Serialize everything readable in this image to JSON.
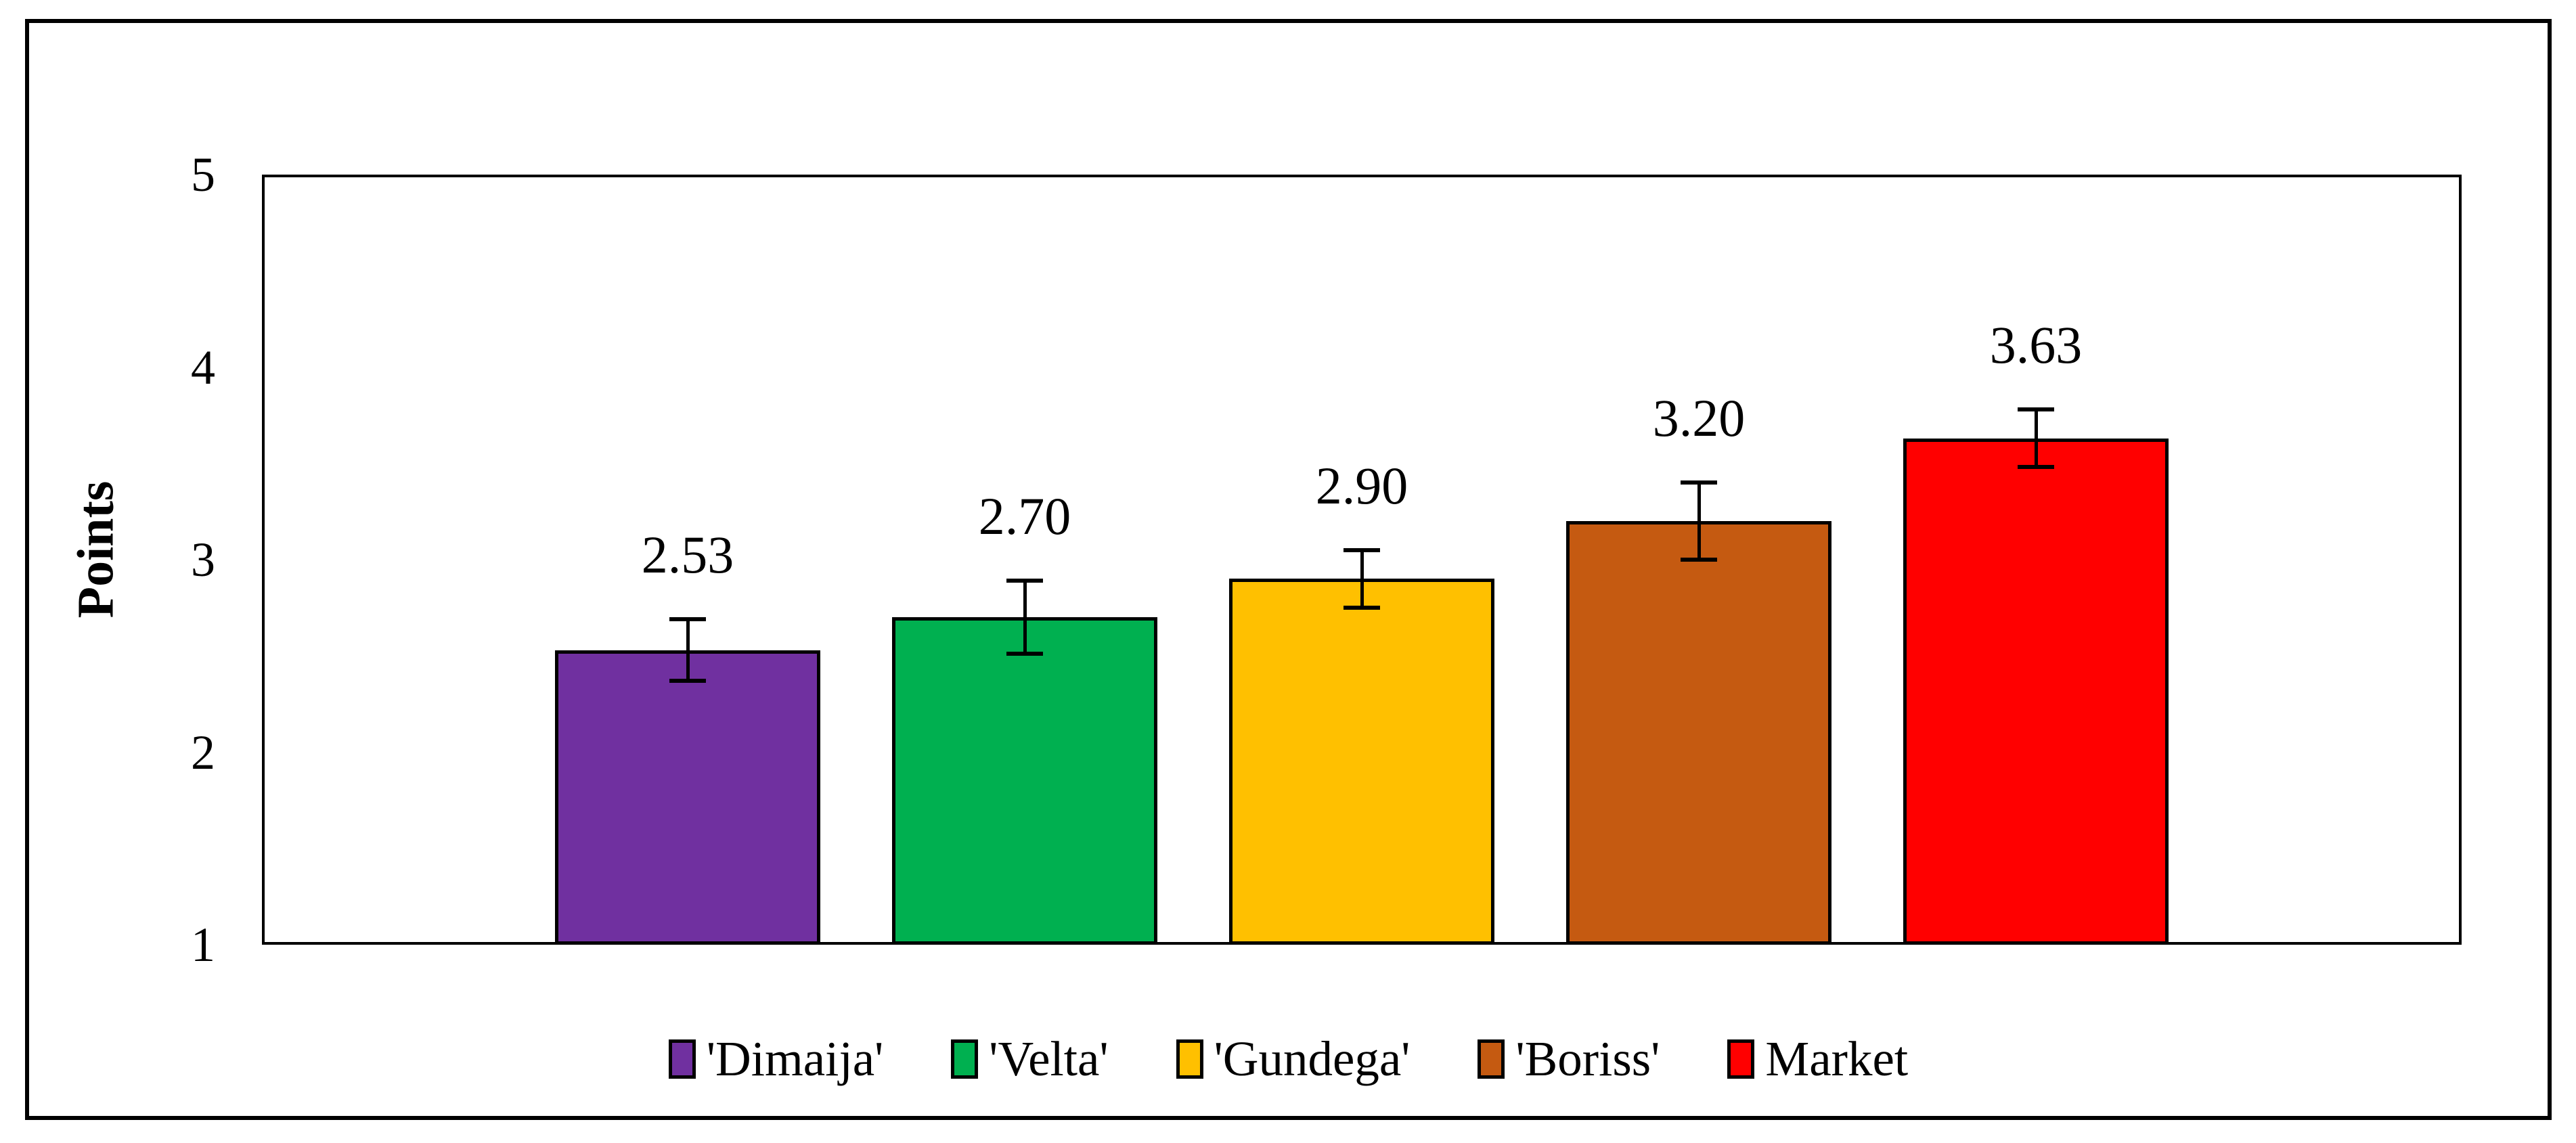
{
  "chart_data": {
    "type": "bar",
    "title": "",
    "ylabel": "Points",
    "ylim": [
      1,
      5
    ],
    "yticks": [
      1,
      2,
      3,
      4,
      5
    ],
    "grid": false,
    "legend_position": "bottom",
    "axis_color": "#000000",
    "background": "#FFFFFF",
    "categories": [
      "'Dimaija'",
      "'Velta'",
      "'Gundega'",
      "'Boriss'",
      "Market"
    ],
    "bars": [
      {
        "label": "'Dimaija'",
        "value": 2.53,
        "value_label": "2.53",
        "error": 0.16,
        "color": "#7030A0"
      },
      {
        "label": "'Velta'",
        "value": 2.7,
        "value_label": "2.70",
        "error": 0.19,
        "color": "#00B050"
      },
      {
        "label": "'Gundega'",
        "value": 2.9,
        "value_label": "2.90",
        "error": 0.15,
        "color": "#FFC000"
      },
      {
        "label": "'Boriss'",
        "value": 3.2,
        "value_label": "3.20",
        "error": 0.2,
        "color": "#C55A11"
      },
      {
        "label": "Market",
        "value": 3.63,
        "value_label": "3.63",
        "error": 0.15,
        "color": "#FF0000"
      }
    ]
  }
}
